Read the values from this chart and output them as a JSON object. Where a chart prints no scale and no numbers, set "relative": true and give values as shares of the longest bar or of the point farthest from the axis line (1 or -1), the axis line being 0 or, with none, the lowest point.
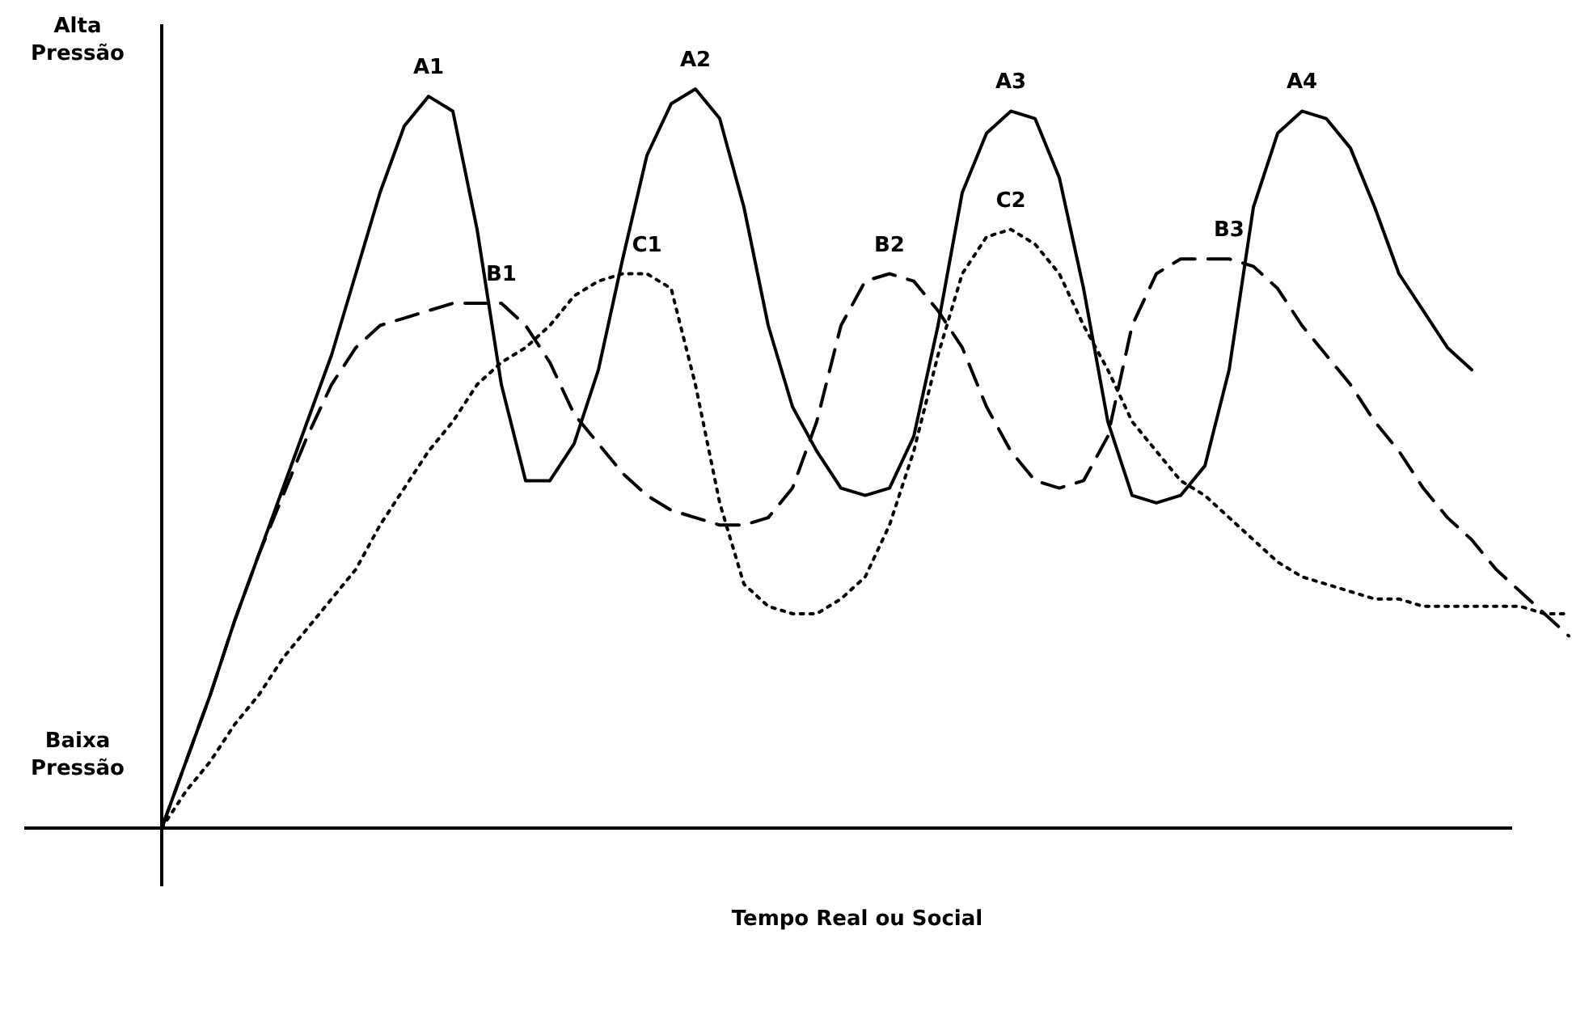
{
  "chart_data": {
    "type": "line",
    "relative": true,
    "xlabel": "Tempo Real ou Social",
    "categories": [
      null,
      null,
      null,
      null,
      null,
      null,
      null,
      null,
      null,
      null,
      null,
      null,
      null,
      null,
      null,
      null,
      null,
      null,
      null,
      null,
      null,
      null,
      null,
      null,
      null,
      null,
      null,
      null,
      null,
      null,
      null,
      null,
      null,
      null,
      null,
      null,
      null,
      null,
      null,
      null,
      null,
      null,
      null,
      null,
      null,
      null,
      null,
      null,
      null,
      null,
      null,
      null,
      null,
      null,
      null,
      null,
      null,
      null,
      null
    ],
    "series": [
      {
        "color": "#000000",
        "line_style": "solid",
        "values": [
          0,
          0.09,
          0.18,
          0.28,
          0.37,
          0.46,
          0.55,
          0.64,
          0.75,
          0.86,
          0.95,
          0.99,
          0.97,
          0.81,
          0.6,
          0.47,
          0.47,
          0.52,
          0.62,
          0.77,
          0.91,
          0.98,
          1.0,
          0.96,
          0.84,
          0.68,
          0.57,
          0.51,
          0.46,
          0.45,
          0.46,
          0.53,
          0.68,
          0.86,
          0.94,
          0.97,
          0.96,
          0.88,
          0.73,
          0.55,
          0.45,
          0.44,
          0.45,
          0.49,
          0.62,
          0.84,
          0.94,
          0.97,
          0.96,
          0.92,
          0.84,
          0.75,
          0.7,
          0.65,
          0.62,
          null,
          null,
          null,
          null
        ]
      },
      {
        "color": "#000000",
        "line_style": "dashed",
        "values": [
          0,
          0.09,
          0.18,
          0.28,
          0.37,
          0.45,
          0.53,
          0.6,
          0.65,
          0.68,
          0.69,
          0.7,
          0.71,
          0.71,
          0.71,
          0.68,
          0.63,
          0.56,
          0.52,
          0.48,
          0.45,
          0.43,
          0.42,
          0.41,
          0.41,
          0.42,
          0.46,
          0.55,
          0.68,
          0.74,
          0.75,
          0.74,
          0.7,
          0.65,
          0.57,
          0.51,
          0.47,
          0.46,
          0.47,
          0.53,
          0.68,
          0.75,
          0.77,
          0.77,
          0.77,
          0.76,
          0.73,
          0.68,
          0.64,
          0.6,
          0.55,
          0.51,
          0.46,
          0.42,
          0.39,
          0.35,
          0.32,
          0.29,
          0.26
        ]
      },
      {
        "color": "#000000",
        "line_style": "dotted",
        "values": [
          0,
          0.05,
          0.09,
          0.14,
          0.18,
          0.23,
          0.27,
          0.31,
          0.35,
          0.41,
          0.46,
          0.51,
          0.55,
          0.6,
          0.63,
          0.65,
          0.68,
          0.72,
          0.74,
          0.75,
          0.75,
          0.73,
          0.6,
          0.44,
          0.33,
          0.3,
          0.29,
          0.29,
          0.31,
          0.34,
          0.41,
          0.51,
          0.64,
          0.75,
          0.8,
          0.81,
          0.79,
          0.75,
          0.68,
          0.62,
          0.55,
          0.51,
          0.47,
          0.45,
          0.42,
          0.39,
          0.36,
          0.34,
          0.33,
          0.32,
          0.31,
          0.31,
          0.3,
          0.3,
          0.3,
          0.3,
          0.3,
          0.29,
          0.29
        ]
      }
    ],
    "annotations": [
      "A1",
      "A2",
      "A3",
      "A4",
      "B1",
      "B2",
      "B3",
      "C1",
      "C2",
      "Alta Pressão",
      "Baixa Pressão"
    ]
  }
}
